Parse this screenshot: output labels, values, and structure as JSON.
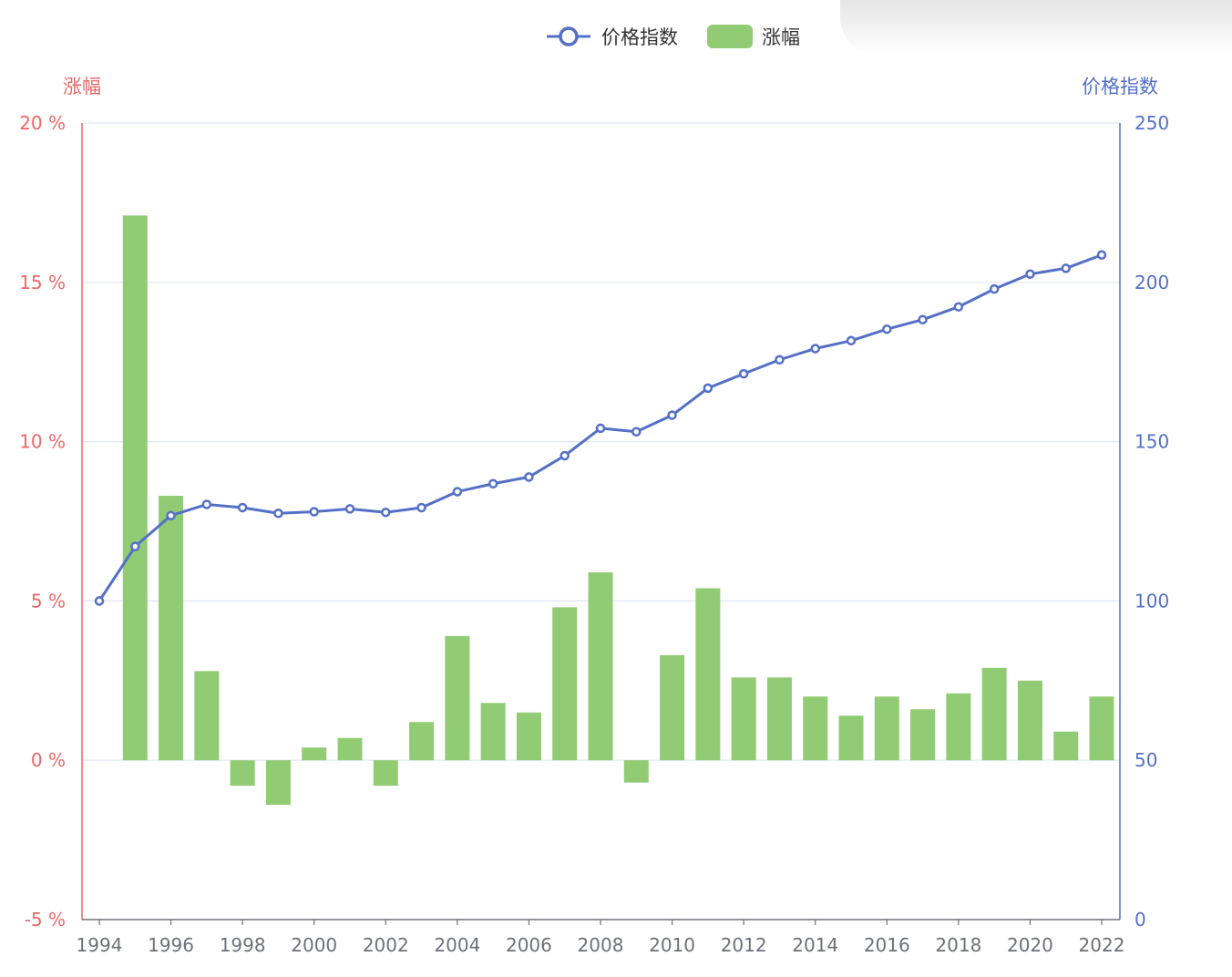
{
  "chart_data": {
    "type": "bar",
    "categories": [
      "1994",
      "1995",
      "1996",
      "1997",
      "1998",
      "1999",
      "2000",
      "2001",
      "2002",
      "2003",
      "2004",
      "2005",
      "2006",
      "2007",
      "2008",
      "2009",
      "2010",
      "2011",
      "2012",
      "2013",
      "2014",
      "2015",
      "2016",
      "2017",
      "2018",
      "2019",
      "2020",
      "2021",
      "2022"
    ],
    "x_tick_labels": [
      "1994",
      "1996",
      "1998",
      "2000",
      "2002",
      "2004",
      "2006",
      "2008",
      "2010",
      "2012",
      "2014",
      "2016",
      "2018",
      "2020",
      "2022"
    ],
    "series": [
      {
        "name": "价格指数",
        "type": "line",
        "axis": "right",
        "color": "#5470c6",
        "values": [
          100,
          117.1,
          126.8,
          130.3,
          129.3,
          127.5,
          128.0,
          128.9,
          127.8,
          129.3,
          134.3,
          136.8,
          138.9,
          145.6,
          154.2,
          153.1,
          158.3,
          166.8,
          171.3,
          175.7,
          179.2,
          181.7,
          185.3,
          188.3,
          192.3,
          197.9,
          202.6,
          204.4,
          208.6
        ]
      },
      {
        "name": "涨幅",
        "type": "bar",
        "axis": "left",
        "color": "#91cc75",
        "values": [
          null,
          17.1,
          8.3,
          2.8,
          -0.8,
          -1.4,
          0.4,
          0.7,
          -0.8,
          1.2,
          3.9,
          1.8,
          1.5,
          4.8,
          5.9,
          -0.7,
          3.3,
          5.4,
          2.6,
          2.6,
          2.0,
          1.4,
          2.0,
          1.6,
          2.1,
          2.9,
          2.5,
          0.9,
          2.0
        ]
      }
    ],
    "left_axis": {
      "name": "涨幅",
      "color": "#ee6666",
      "min": -5,
      "max": 20,
      "interval": 5,
      "tick_labels": [
        "-5 %",
        "0 %",
        "5 %",
        "10 %",
        "15 %",
        "20 %"
      ]
    },
    "right_axis": {
      "name": "价格指数",
      "color": "#5470c6",
      "min": 0,
      "max": 250,
      "interval": 50,
      "tick_labels": [
        "0",
        "50",
        "100",
        "150",
        "200",
        "250"
      ]
    },
    "legend": {
      "position": "top-center",
      "items": [
        {
          "label": "价格指数",
          "symbol": "line-circle",
          "color": "#5470c6"
        },
        {
          "label": "涨幅",
          "symbol": "rounded-rect",
          "color": "#91cc75"
        }
      ]
    },
    "grid": true
  }
}
